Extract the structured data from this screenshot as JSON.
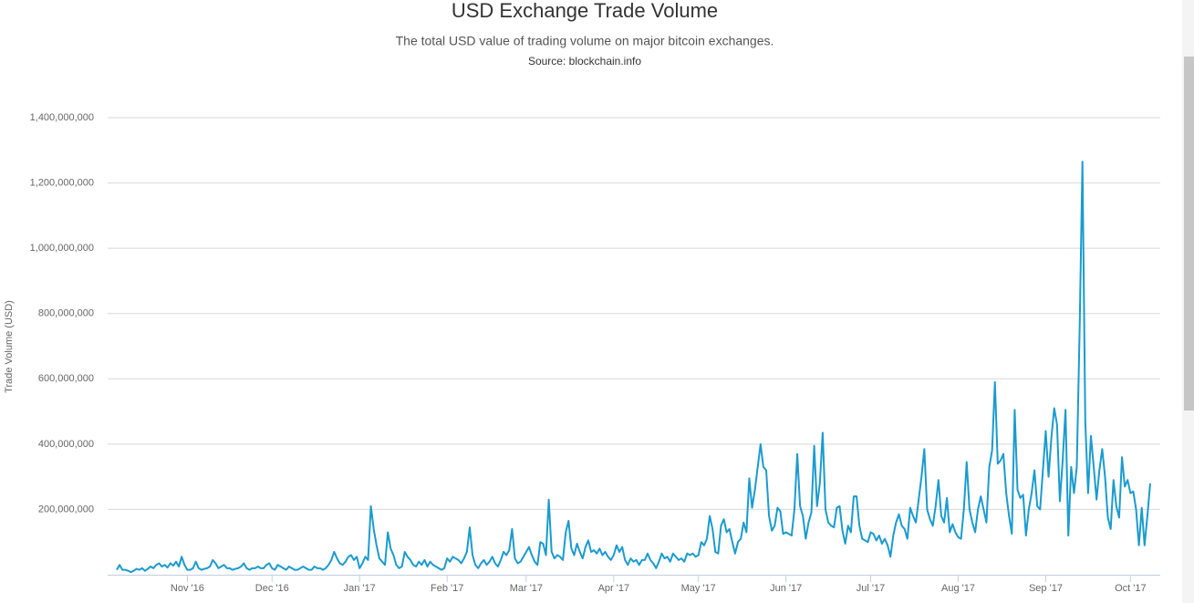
{
  "chart_data": {
    "type": "line",
    "title": "USD Exchange Trade Volume",
    "subtitle": "The total USD value of trading volume on major bitcoin exchanges.",
    "source": "Source: blockchain.info",
    "y_label": "Trade Volume (USD)",
    "color": "#1a9bd0",
    "grid": true,
    "ylim": [
      0,
      1400000000
    ],
    "yticks": [
      {
        "value": 200000000,
        "label": "200,000,000"
      },
      {
        "value": 400000000,
        "label": "400,000,000"
      },
      {
        "value": 600000000,
        "label": "600,000,000"
      },
      {
        "value": 800000000,
        "label": "800,000,000"
      },
      {
        "value": 1000000000,
        "label": "1,000,000,000"
      },
      {
        "value": 1200000000,
        "label": "1,200,000,000"
      },
      {
        "value": 1400000000,
        "label": "1,400,000,000"
      }
    ],
    "categories": [
      null,
      null,
      null,
      null,
      null,
      null,
      null,
      null,
      null,
      null,
      null,
      null,
      null,
      null,
      null,
      null,
      null,
      null,
      null,
      null,
      null,
      null,
      null,
      null,
      null,
      "Nov '16",
      null,
      null,
      null,
      null,
      null,
      null,
      null,
      null,
      null,
      null,
      null,
      null,
      null,
      null,
      null,
      null,
      null,
      null,
      null,
      null,
      null,
      null,
      null,
      null,
      null,
      null,
      null,
      null,
      null,
      "Dec '16",
      null,
      null,
      null,
      null,
      null,
      null,
      null,
      null,
      null,
      null,
      null,
      null,
      null,
      null,
      null,
      null,
      null,
      null,
      null,
      null,
      null,
      null,
      null,
      null,
      null,
      null,
      null,
      null,
      null,
      null,
      "Jan '17",
      null,
      null,
      null,
      null,
      null,
      null,
      null,
      null,
      null,
      null,
      null,
      null,
      null,
      null,
      null,
      null,
      null,
      null,
      null,
      null,
      null,
      null,
      null,
      null,
      null,
      null,
      null,
      null,
      null,
      null,
      "Feb '17",
      null,
      null,
      null,
      null,
      null,
      null,
      null,
      null,
      null,
      null,
      null,
      null,
      null,
      null,
      null,
      null,
      null,
      null,
      null,
      null,
      null,
      null,
      null,
      null,
      null,
      null,
      null,
      "Mar '17",
      null,
      null,
      null,
      null,
      null,
      null,
      null,
      null,
      null,
      null,
      null,
      null,
      null,
      null,
      null,
      null,
      null,
      null,
      null,
      null,
      null,
      null,
      null,
      null,
      null,
      null,
      null,
      null,
      null,
      null,
      "Apr '17",
      null,
      null,
      null,
      null,
      null,
      null,
      null,
      null,
      null,
      null,
      null,
      null,
      null,
      null,
      null,
      null,
      null,
      null,
      null,
      null,
      null,
      null,
      null,
      null,
      null,
      null,
      null,
      null,
      null,
      "May '17",
      null,
      null,
      null,
      null,
      null,
      null,
      null,
      null,
      null,
      null,
      null,
      null,
      null,
      null,
      null,
      null,
      null,
      null,
      null,
      null,
      null,
      null,
      null,
      null,
      null,
      null,
      null,
      null,
      null,
      null,
      "Jun '17",
      null,
      null,
      null,
      null,
      null,
      null,
      null,
      null,
      null,
      null,
      null,
      null,
      null,
      null,
      null,
      null,
      null,
      null,
      null,
      null,
      null,
      null,
      null,
      null,
      null,
      null,
      null,
      null,
      null,
      "Jul '17",
      null,
      null,
      null,
      null,
      null,
      null,
      null,
      null,
      null,
      null,
      null,
      null,
      null,
      null,
      null,
      null,
      null,
      null,
      null,
      null,
      null,
      null,
      null,
      null,
      null,
      null,
      null,
      null,
      null,
      null,
      "Aug '17",
      null,
      null,
      null,
      null,
      null,
      null,
      null,
      null,
      null,
      null,
      null,
      null,
      null,
      null,
      null,
      null,
      null,
      null,
      null,
      null,
      null,
      null,
      null,
      null,
      null,
      null,
      null,
      null,
      null,
      null,
      "Sep '17",
      null,
      null,
      null,
      null,
      null,
      null,
      null,
      null,
      null,
      null,
      null,
      null,
      null,
      null,
      null,
      null,
      null,
      null,
      null,
      null,
      null,
      null,
      null,
      null,
      null,
      null,
      null,
      null,
      null,
      "Oct '17",
      null,
      null,
      null,
      null,
      null,
      null,
      null
    ],
    "values": [
      15000000,
      30000000,
      15000000,
      15000000,
      12000000,
      8000000,
      12000000,
      18000000,
      15000000,
      20000000,
      12000000,
      18000000,
      25000000,
      20000000,
      30000000,
      35000000,
      25000000,
      30000000,
      22000000,
      35000000,
      28000000,
      40000000,
      25000000,
      55000000,
      30000000,
      15000000,
      15000000,
      20000000,
      40000000,
      20000000,
      15000000,
      18000000,
      20000000,
      25000000,
      45000000,
      35000000,
      20000000,
      25000000,
      30000000,
      20000000,
      20000000,
      15000000,
      18000000,
      20000000,
      25000000,
      35000000,
      20000000,
      15000000,
      20000000,
      20000000,
      25000000,
      20000000,
      20000000,
      30000000,
      35000000,
      20000000,
      15000000,
      30000000,
      25000000,
      20000000,
      15000000,
      25000000,
      20000000,
      15000000,
      15000000,
      20000000,
      25000000,
      20000000,
      15000000,
      15000000,
      25000000,
      20000000,
      20000000,
      15000000,
      20000000,
      30000000,
      45000000,
      70000000,
      50000000,
      35000000,
      30000000,
      40000000,
      55000000,
      60000000,
      45000000,
      55000000,
      20000000,
      35000000,
      55000000,
      45000000,
      210000000,
      140000000,
      90000000,
      50000000,
      40000000,
      30000000,
      130000000,
      80000000,
      60000000,
      30000000,
      20000000,
      25000000,
      70000000,
      55000000,
      45000000,
      30000000,
      25000000,
      40000000,
      30000000,
      45000000,
      25000000,
      40000000,
      30000000,
      25000000,
      20000000,
      15000000,
      20000000,
      50000000,
      40000000,
      55000000,
      50000000,
      45000000,
      35000000,
      50000000,
      70000000,
      145000000,
      60000000,
      30000000,
      20000000,
      35000000,
      45000000,
      30000000,
      40000000,
      55000000,
      35000000,
      25000000,
      45000000,
      70000000,
      60000000,
      75000000,
      140000000,
      50000000,
      35000000,
      40000000,
      55000000,
      70000000,
      85000000,
      60000000,
      40000000,
      30000000,
      100000000,
      95000000,
      60000000,
      230000000,
      70000000,
      50000000,
      60000000,
      55000000,
      45000000,
      130000000,
      165000000,
      80000000,
      60000000,
      95000000,
      70000000,
      50000000,
      85000000,
      105000000,
      70000000,
      75000000,
      65000000,
      80000000,
      60000000,
      70000000,
      55000000,
      45000000,
      60000000,
      90000000,
      70000000,
      85000000,
      45000000,
      30000000,
      50000000,
      40000000,
      45000000,
      30000000,
      45000000,
      45000000,
      65000000,
      45000000,
      35000000,
      20000000,
      40000000,
      65000000,
      50000000,
      55000000,
      40000000,
      65000000,
      55000000,
      45000000,
      50000000,
      40000000,
      65000000,
      60000000,
      65000000,
      55000000,
      60000000,
      100000000,
      90000000,
      110000000,
      180000000,
      140000000,
      70000000,
      65000000,
      150000000,
      170000000,
      130000000,
      140000000,
      100000000,
      65000000,
      100000000,
      110000000,
      160000000,
      130000000,
      295000000,
      205000000,
      260000000,
      330000000,
      400000000,
      330000000,
      320000000,
      180000000,
      135000000,
      150000000,
      205000000,
      195000000,
      125000000,
      130000000,
      125000000,
      120000000,
      200000000,
      370000000,
      210000000,
      180000000,
      110000000,
      160000000,
      190000000,
      395000000,
      210000000,
      280000000,
      435000000,
      200000000,
      160000000,
      150000000,
      145000000,
      205000000,
      210000000,
      135000000,
      95000000,
      150000000,
      130000000,
      240000000,
      240000000,
      150000000,
      110000000,
      105000000,
      100000000,
      130000000,
      125000000,
      105000000,
      120000000,
      95000000,
      110000000,
      90000000,
      55000000,
      120000000,
      160000000,
      185000000,
      150000000,
      140000000,
      110000000,
      205000000,
      180000000,
      160000000,
      230000000,
      300000000,
      385000000,
      200000000,
      170000000,
      150000000,
      210000000,
      290000000,
      180000000,
      160000000,
      235000000,
      130000000,
      155000000,
      130000000,
      115000000,
      110000000,
      200000000,
      345000000,
      200000000,
      160000000,
      130000000,
      200000000,
      240000000,
      200000000,
      160000000,
      330000000,
      380000000,
      590000000,
      340000000,
      350000000,
      370000000,
      250000000,
      180000000,
      125000000,
      505000000,
      260000000,
      235000000,
      245000000,
      120000000,
      200000000,
      250000000,
      320000000,
      210000000,
      200000000,
      320000000,
      440000000,
      300000000,
      420000000,
      510000000,
      460000000,
      225000000,
      350000000,
      505000000,
      120000000,
      330000000,
      250000000,
      330000000,
      750000000,
      1265000000,
      470000000,
      250000000,
      425000000,
      330000000,
      230000000,
      320000000,
      385000000,
      300000000,
      175000000,
      140000000,
      290000000,
      210000000,
      175000000,
      360000000,
      270000000,
      290000000,
      250000000,
      255000000,
      200000000,
      90000000,
      205000000,
      90000000,
      180000000,
      280000000
    ]
  }
}
